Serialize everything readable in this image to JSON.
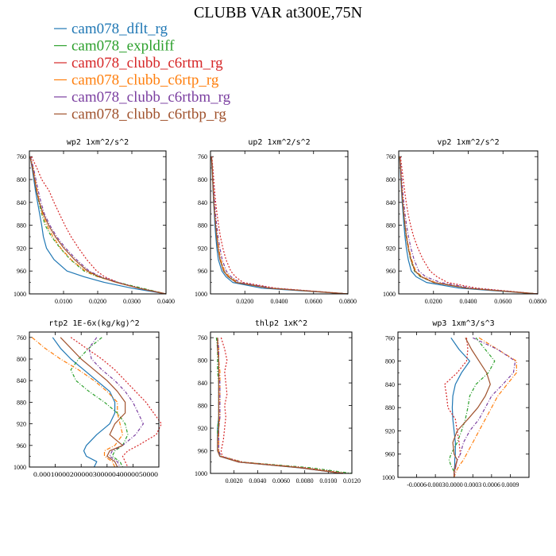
{
  "figure": {
    "title": "CLUBB VAR at300E,75N"
  },
  "legend": {
    "entries": [
      {
        "label": "cam078_dflt_rg",
        "color": "#1f77b4"
      },
      {
        "label": "cam078_expldiff",
        "color": "#2ca02c"
      },
      {
        "label": "cam078_clubb_c6rtm_rg",
        "color": "#d62728"
      },
      {
        "label": "cam078_clubb_c6rtp_rg",
        "color": "#ff7f0e"
      },
      {
        "label": "cam078_clubb_c6rtbm_rg",
        "color": "#7b3fa0"
      },
      {
        "label": "cam078_clubb_c6rtbp_rg",
        "color": "#a0522d"
      }
    ]
  },
  "chart_data": [
    {
      "type": "line",
      "title": "wp2  1xm^2/s^2",
      "xlim": [
        0,
        0.04
      ],
      "ylim": [
        1000,
        750
      ],
      "xticks": [
        0.01,
        0.02,
        0.03,
        0.04
      ],
      "xtick_labels": [
        "0.0100",
        "0.0200",
        "0.0300",
        "0.0400"
      ],
      "yticks": [
        760,
        800,
        840,
        880,
        920,
        960,
        1000
      ],
      "y": [
        760,
        780,
        800,
        820,
        840,
        860,
        880,
        900,
        920,
        940,
        960,
        970,
        980,
        990,
        1000
      ],
      "series": [
        {
          "name": "cam078_dflt_rg",
          "x": [
            0.0002,
            0.0008,
            0.0013,
            0.0018,
            0.0024,
            0.003,
            0.0036,
            0.0041,
            0.005,
            0.0072,
            0.011,
            0.016,
            0.022,
            0.03,
            0.04
          ]
        },
        {
          "name": "cam078_expldiff",
          "x": [
            0.0003,
            0.001,
            0.0015,
            0.0021,
            0.0028,
            0.0036,
            0.0046,
            0.0065,
            0.009,
            0.012,
            0.016,
            0.02,
            0.026,
            0.033,
            0.04
          ]
        },
        {
          "name": "cam078_clubb_c6rtm_rg",
          "x": [
            0.0006,
            0.0022,
            0.0036,
            0.0058,
            0.0072,
            0.0088,
            0.0104,
            0.0122,
            0.0144,
            0.0168,
            0.0197,
            0.022,
            0.026,
            0.032,
            0.04
          ]
        },
        {
          "name": "cam078_clubb_c6rtp_rg",
          "x": [
            0.0003,
            0.0011,
            0.0017,
            0.0023,
            0.003,
            0.0038,
            0.0051,
            0.0069,
            0.0092,
            0.0122,
            0.0164,
            0.0202,
            0.0255,
            0.032,
            0.04
          ]
        },
        {
          "name": "cam078_clubb_c6rtbm_rg",
          "x": [
            0.0003,
            0.0012,
            0.0019,
            0.0026,
            0.0034,
            0.0044,
            0.006,
            0.008,
            0.0106,
            0.0138,
            0.0175,
            0.021,
            0.026,
            0.032,
            0.04
          ]
        },
        {
          "name": "cam078_clubb_c6rtbp_rg",
          "x": [
            0.0002,
            0.0009,
            0.0015,
            0.0021,
            0.0029,
            0.0041,
            0.0056,
            0.0076,
            0.0101,
            0.0132,
            0.017,
            0.0205,
            0.0255,
            0.032,
            0.04
          ]
        }
      ]
    },
    {
      "type": "line",
      "title": "up2  1xm^2/s^2",
      "xlim": [
        0,
        0.08
      ],
      "ylim": [
        1000,
        750
      ],
      "xticks": [
        0.02,
        0.04,
        0.06,
        0.08
      ],
      "xtick_labels": [
        "0.0200",
        "0.0400",
        "0.0600",
        "0.0800"
      ],
      "yticks": [
        760,
        800,
        840,
        880,
        920,
        960,
        1000
      ],
      "y": [
        760,
        780,
        800,
        820,
        840,
        860,
        880,
        900,
        920,
        940,
        960,
        970,
        980,
        990,
        1000
      ],
      "series": [
        {
          "name": "cam078_dflt_rg",
          "x": [
            0.0005,
            0.0009,
            0.0012,
            0.0015,
            0.0018,
            0.0022,
            0.0026,
            0.0031,
            0.0037,
            0.0046,
            0.0066,
            0.009,
            0.013,
            0.03,
            0.08
          ]
        },
        {
          "name": "cam078_expldiff",
          "x": [
            0.0006,
            0.001,
            0.0013,
            0.0016,
            0.002,
            0.0025,
            0.003,
            0.0036,
            0.0044,
            0.0056,
            0.0078,
            0.0105,
            0.016,
            0.035,
            0.08
          ]
        },
        {
          "name": "cam078_clubb_c6rtm_rg",
          "x": [
            0.0008,
            0.0014,
            0.0019,
            0.0024,
            0.003,
            0.0038,
            0.0047,
            0.0058,
            0.0072,
            0.009,
            0.0118,
            0.0145,
            0.019,
            0.038,
            0.08
          ]
        },
        {
          "name": "cam078_clubb_c6rtp_rg",
          "x": [
            0.0006,
            0.001,
            0.0013,
            0.0017,
            0.0021,
            0.0026,
            0.0032,
            0.0039,
            0.0048,
            0.006,
            0.0082,
            0.011,
            0.016,
            0.035,
            0.08
          ]
        },
        {
          "name": "cam078_clubb_c6rtbm_rg",
          "x": [
            0.0006,
            0.0011,
            0.0015,
            0.0019,
            0.0024,
            0.0029,
            0.0036,
            0.0044,
            0.0055,
            0.0068,
            0.0092,
            0.012,
            0.017,
            0.036,
            0.08
          ]
        },
        {
          "name": "cam078_clubb_c6rtbp_rg",
          "x": [
            0.0005,
            0.001,
            0.0013,
            0.0016,
            0.002,
            0.0024,
            0.003,
            0.0036,
            0.0044,
            0.0055,
            0.0076,
            0.0102,
            0.015,
            0.034,
            0.08
          ]
        }
      ]
    },
    {
      "type": "line",
      "title": "vp2  1xm^2/s^2",
      "xlim": [
        0,
        0.08
      ],
      "ylim": [
        1000,
        750
      ],
      "xticks": [
        0.02,
        0.04,
        0.06,
        0.08
      ],
      "xtick_labels": [
        "0.0200",
        "0.0400",
        "0.0600",
        "0.0800"
      ],
      "yticks": [
        760,
        800,
        840,
        880,
        920,
        960,
        1000
      ],
      "y": [
        760,
        780,
        800,
        820,
        840,
        860,
        880,
        900,
        920,
        940,
        960,
        970,
        980,
        990,
        1000
      ],
      "series": [
        {
          "name": "cam078_dflt_rg",
          "x": [
            0.0005,
            0.0009,
            0.0012,
            0.0016,
            0.002,
            0.0025,
            0.003,
            0.0036,
            0.0044,
            0.0055,
            0.0072,
            0.01,
            0.016,
            0.035,
            0.08
          ]
        },
        {
          "name": "cam078_expldiff",
          "x": [
            0.0006,
            0.001,
            0.0014,
            0.0018,
            0.0023,
            0.0028,
            0.0035,
            0.0043,
            0.0054,
            0.0068,
            0.009,
            0.0125,
            0.02,
            0.04,
            0.08
          ]
        },
        {
          "name": "cam078_clubb_c6rtm_rg",
          "x": [
            0.001,
            0.0018,
            0.0026,
            0.0034,
            0.0043,
            0.0054,
            0.0068,
            0.0086,
            0.011,
            0.014,
            0.018,
            0.022,
            0.028,
            0.045,
            0.08
          ]
        },
        {
          "name": "cam078_clubb_c6rtp_rg",
          "x": [
            0.0006,
            0.0011,
            0.0015,
            0.0019,
            0.0024,
            0.003,
            0.0037,
            0.0046,
            0.0058,
            0.0074,
            0.0098,
            0.0135,
            0.021,
            0.04,
            0.08
          ]
        },
        {
          "name": "cam078_clubb_c6rtbm_rg",
          "x": [
            0.0007,
            0.0013,
            0.0018,
            0.0023,
            0.0029,
            0.0036,
            0.0045,
            0.0056,
            0.007,
            0.0088,
            0.0115,
            0.0155,
            0.024,
            0.042,
            0.08
          ]
        },
        {
          "name": "cam078_clubb_c6rtbp_rg",
          "x": [
            0.0006,
            0.001,
            0.0014,
            0.0018,
            0.0023,
            0.0029,
            0.0036,
            0.0044,
            0.0055,
            0.007,
            0.0093,
            0.013,
            0.02,
            0.039,
            0.08
          ]
        }
      ]
    },
    {
      "type": "line",
      "title": "rtp2  1E-6x(kg/kg)^2",
      "xlim": [
        0,
        5e-05
      ],
      "ylim": [
        1000,
        750
      ],
      "xticks": [
        1e-05,
        2e-05,
        3e-05,
        4e-05,
        5e-05
      ],
      "xtick_labels": [
        "0.000010",
        "0.000020",
        "0.000030",
        "0.000040",
        "0.000050"
      ],
      "xtick_text": "0.0001000020000030000040000050000",
      "yticks": [
        760,
        800,
        840,
        880,
        920,
        960,
        1000
      ],
      "y": [
        760,
        780,
        800,
        820,
        840,
        860,
        880,
        900,
        920,
        940,
        960,
        970,
        980,
        990,
        1000
      ],
      "series": [
        {
          "name": "cam078_dflt_rg",
          "x": [
            9e-06,
            1.2e-05,
            1.6e-05,
            2.1e-05,
            2.6e-05,
            3.1e-05,
            3.3e-05,
            3.3e-05,
            3.1e-05,
            2.6e-05,
            2.2e-05,
            2.1e-05,
            2.2e-05,
            2.6e-05,
            2.5e-05
          ]
        },
        {
          "name": "cam078_expldiff",
          "x": [
            2.8e-05,
            2.3e-05,
            1.9e-05,
            1.6e-05,
            1.8e-05,
            2.3e-05,
            2.9e-05,
            3.4e-05,
            3.7e-05,
            3.8e-05,
            3.6e-05,
            3.3e-05,
            3.2e-05,
            3.5e-05,
            3.6e-05
          ]
        },
        {
          "name": "cam078_clubb_c6rtm_rg",
          "x": [
            1.6e-05,
            2.2e-05,
            2.8e-05,
            3.3e-05,
            3.7e-05,
            4.1e-05,
            4.5e-05,
            4.8e-05,
            5.1e-05,
            4.9e-05,
            4.2e-05,
            3.8e-05,
            3.6e-05,
            3.7e-05,
            3.8e-05
          ]
        },
        {
          "name": "cam078_clubb_c6rtp_rg",
          "x": [
            1e-06,
            6e-06,
            1.2e-05,
            1.9e-05,
            2.5e-05,
            3e-05,
            3.4e-05,
            3.4e-05,
            3.5e-05,
            3.6e-05,
            3.3e-05,
            2.9e-05,
            2.9e-05,
            3.2e-05,
            3.3e-05
          ]
        },
        {
          "name": "cam078_clubb_c6rtbm_rg",
          "x": [
            2.6e-05,
            2.3e-05,
            2.4e-05,
            2.8e-05,
            3.3e-05,
            3.7e-05,
            4e-05,
            4.2e-05,
            4.4e-05,
            4.1e-05,
            3.6e-05,
            3.2e-05,
            3.1e-05,
            3.4e-05,
            3.5e-05
          ]
        },
        {
          "name": "cam078_clubb_c6rtbp_rg",
          "x": [
            1.2e-05,
            1.6e-05,
            2e-05,
            2.5e-05,
            3e-05,
            3.4e-05,
            3.7e-05,
            3.7e-05,
            3.3e-05,
            3.1e-05,
            3.6e-05,
            3.1e-05,
            3e-05,
            3.3e-05,
            3.4e-05
          ]
        }
      ]
    },
    {
      "type": "line",
      "title": "thlp2  1xK^2",
      "xlim": [
        0,
        0.012
      ],
      "ylim": [
        1000,
        750
      ],
      "xticks": [
        0.002,
        0.004,
        0.006,
        0.008,
        0.01,
        0.012
      ],
      "xtick_labels": [
        "0.0020",
        "0.0040",
        "0.0060",
        "0.0080",
        "0.0100",
        "0.0120"
      ],
      "yticks": [
        760,
        800,
        840,
        880,
        920,
        960,
        1000
      ],
      "y": [
        760,
        780,
        800,
        820,
        840,
        860,
        880,
        900,
        920,
        940,
        960,
        970,
        980,
        990,
        1000
      ],
      "series": [
        {
          "name": "cam078_dflt_rg",
          "x": [
            0.0006,
            0.0006,
            0.0007,
            0.0007,
            0.0007,
            0.0007,
            0.0007,
            0.0007,
            0.0006,
            0.0006,
            0.0006,
            0.0008,
            0.0024,
            0.0075,
            0.0112
          ]
        },
        {
          "name": "cam078_expldiff",
          "x": [
            0.0005,
            0.0006,
            0.0006,
            0.0006,
            0.0007,
            0.0007,
            0.0007,
            0.0007,
            0.0006,
            0.0006,
            0.0006,
            0.0009,
            0.0028,
            0.0085,
            0.012
          ]
        },
        {
          "name": "cam078_clubb_c6rtm_rg",
          "x": [
            0.0009,
            0.0012,
            0.0014,
            0.0012,
            0.0013,
            0.0014,
            0.0012,
            0.0013,
            0.0012,
            0.0011,
            0.0009,
            0.001,
            0.0027,
            0.008,
            0.0115
          ]
        },
        {
          "name": "cam078_clubb_c6rtp_rg",
          "x": [
            0.0006,
            0.0007,
            0.0007,
            0.0008,
            0.0008,
            0.0008,
            0.0008,
            0.0008,
            0.0007,
            0.0007,
            0.0007,
            0.0009,
            0.0026,
            0.0078,
            0.0113
          ]
        },
        {
          "name": "cam078_clubb_c6rtbm_rg",
          "x": [
            0.0006,
            0.0007,
            0.0007,
            0.0007,
            0.0008,
            0.0008,
            0.0008,
            0.0008,
            0.0007,
            0.0007,
            0.0007,
            0.0009,
            0.0025,
            0.0077,
            0.0112
          ]
        },
        {
          "name": "cam078_clubb_c6rtbp_rg",
          "x": [
            0.0006,
            0.0006,
            0.0007,
            0.0007,
            0.0007,
            0.0007,
            0.0007,
            0.0007,
            0.0007,
            0.0006,
            0.0006,
            0.0008,
            0.0024,
            0.0076,
            0.0112
          ]
        }
      ]
    },
    {
      "type": "line",
      "title": "wp3  1xm^3/s^3",
      "xlim": [
        -0.0009,
        0.0012
      ],
      "ylim": [
        1000,
        750
      ],
      "xticks": [
        -0.0006,
        -0.0003,
        0.0,
        0.0003,
        0.0006,
        0.0009
      ],
      "xtick_labels": [
        "-0.0006",
        "-0.0003",
        "0.0000",
        "0.0003",
        "0.0006",
        "0.0009"
      ],
      "yticks": [
        760,
        800,
        840,
        880,
        920,
        960,
        1000
      ],
      "y": [
        760,
        780,
        800,
        820,
        840,
        860,
        880,
        900,
        920,
        940,
        960,
        970,
        980,
        990,
        1000
      ],
      "series": [
        {
          "name": "cam078_dflt_rg",
          "x": [
            -5e-05,
            8e-05,
            0.00025,
            0.00012,
            2e-05,
            -2e-05,
            -3e-05,
            -2e-05,
            0.0,
            2e-05,
            2e-05,
            1e-05,
            1e-05,
            0.0,
            0.0
          ]
        },
        {
          "name": "cam078_expldiff",
          "x": [
            0.00035,
            0.0005,
            0.00065,
            0.00055,
            0.00035,
            0.00025,
            0.00022,
            0.00018,
            0.00012,
            5e-05,
            -5e-05,
            -8e-05,
            -5e-05,
            0.0,
            0.0
          ]
        },
        {
          "name": "cam078_clubb_c6rtm_rg",
          "x": [
            0.0002,
            0.00022,
            0.0002,
            5e-05,
            -0.00015,
            -0.00012,
            -0.0001,
            2e-05,
            5e-05,
            8e-05,
            0.0001,
            5e-05,
            3e-05,
            0.0,
            0.0
          ]
        },
        {
          "name": "cam078_clubb_c6rtp_rg",
          "x": [
            0.0004,
            0.0007,
            0.001,
            0.001,
            0.00085,
            0.0007,
            0.0006,
            0.0005,
            0.0004,
            0.0003,
            0.0002,
            0.00015,
            8e-05,
            3e-05,
            0.0
          ]
        },
        {
          "name": "cam078_clubb_c6rtbm_rg",
          "x": [
            0.0003,
            0.0007,
            0.00098,
            0.00095,
            0.00078,
            0.0006,
            0.0005,
            0.0004,
            0.00025,
            0.00015,
            0.0001,
            5e-05,
            3e-05,
            1e-05,
            0.0
          ]
        },
        {
          "name": "cam078_clubb_c6rtbp_rg",
          "x": [
            0.00018,
            0.00028,
            0.0004,
            0.00052,
            0.00058,
            0.0005,
            0.00038,
            0.00022,
            5e-05,
            -2e-05,
            0.0,
            5e-05,
            2e-05,
            0.0,
            0.0
          ]
        }
      ]
    }
  ]
}
